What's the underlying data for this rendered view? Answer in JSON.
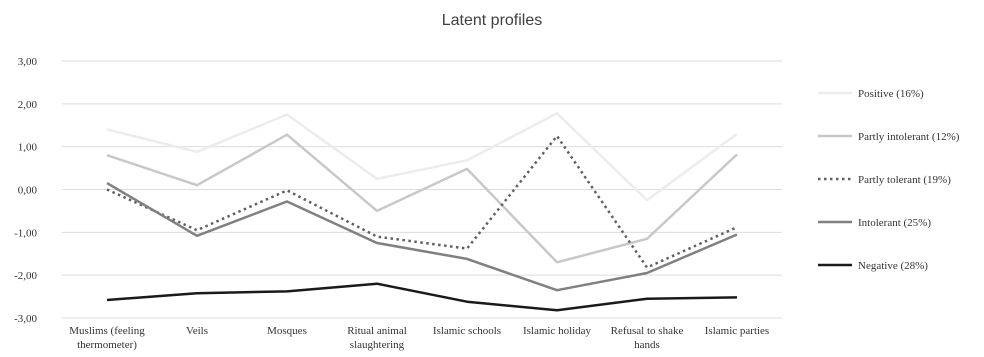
{
  "chart_data": {
    "type": "line",
    "title": "Latent profiles",
    "categories": [
      [
        "Muslims (feeling",
        "thermometer)"
      ],
      [
        "Veils"
      ],
      [
        "Mosques"
      ],
      [
        "Ritual animal",
        "slaughtering"
      ],
      [
        "Islamic schools"
      ],
      [
        "Islamic holiday"
      ],
      [
        "Refusal to shake",
        "hands"
      ],
      [
        "Islamic parties"
      ]
    ],
    "ylim": [
      -3,
      3
    ],
    "yticks": [
      "3,00",
      "2,00",
      "1,00",
      "0,00",
      "-1,00",
      "-2,00",
      "-3,00"
    ],
    "ytick_values": [
      3,
      2,
      1,
      0,
      -1,
      -2,
      -3
    ],
    "grid": true,
    "legend_position": "right",
    "series": [
      {
        "name": "Positive (16%)",
        "values": [
          1.4,
          0.88,
          1.75,
          0.25,
          0.68,
          1.78,
          -0.25,
          1.3
        ],
        "color": "#ececec",
        "dash": "solid",
        "width": 2.5
      },
      {
        "name": "Partly intolerant (12%)",
        "values": [
          0.8,
          0.1,
          1.28,
          -0.5,
          0.48,
          -1.7,
          -1.15,
          0.82
        ],
        "color": "#c8c8c8",
        "dash": "solid",
        "width": 2.5
      },
      {
        "name": "Partly tolerant (19%)",
        "values": [
          0.0,
          -0.95,
          -0.02,
          -1.1,
          -1.38,
          1.25,
          -1.82,
          -0.88
        ],
        "color": "#606060",
        "dash": "dotted",
        "width": 2.5
      },
      {
        "name": "Intolerant (25%)",
        "values": [
          0.15,
          -1.08,
          -0.28,
          -1.25,
          -1.62,
          -2.35,
          -1.95,
          -1.05
        ],
        "color": "#808080",
        "dash": "solid",
        "width": 2.5
      },
      {
        "name": "Negative (28%)",
        "values": [
          -2.58,
          -2.42,
          -2.38,
          -2.2,
          -2.62,
          -2.82,
          -2.55,
          -2.52
        ],
        "color": "#1a1a1a",
        "dash": "solid",
        "width": 2.5
      }
    ]
  }
}
